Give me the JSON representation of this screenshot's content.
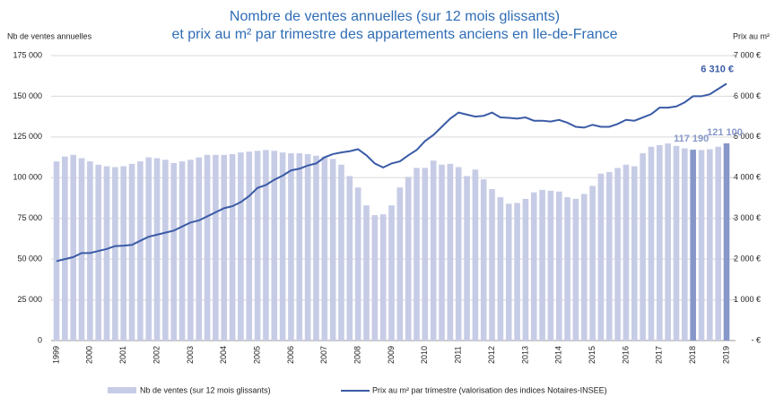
{
  "chart_data": {
    "type": "bar_line",
    "title": [
      "Nombre de ventes annuelles (sur 12 mois glissants)",
      "et prix au m² par trimestre des appartements anciens en Ile-de-France"
    ],
    "y_label": "Nb de ventes annuelles",
    "y2_label": "Prix au m²",
    "categories": [
      "1999",
      null,
      null,
      null,
      "2000",
      null,
      null,
      null,
      "2001",
      null,
      null,
      null,
      "2002",
      null,
      null,
      null,
      "2003",
      null,
      null,
      null,
      "2004",
      null,
      null,
      null,
      "2005",
      null,
      null,
      null,
      "2006",
      null,
      null,
      null,
      "2007",
      null,
      null,
      null,
      "2008",
      null,
      null,
      null,
      "2009",
      null,
      null,
      null,
      "2010",
      null,
      null,
      null,
      "2011",
      null,
      null,
      null,
      "2012",
      null,
      null,
      null,
      "2013",
      null,
      null,
      null,
      "2014",
      null,
      null,
      null,
      "2015",
      null,
      null,
      null,
      "2016",
      null,
      null,
      null,
      "2017",
      null,
      null,
      null,
      "2018",
      null,
      null,
      null,
      "2019"
    ],
    "ylim": [
      0,
      175000
    ],
    "yticks": [
      0,
      {
        "value": 25000,
        "label": "25 000"
      },
      {
        "value": 50000,
        "label": "50 000"
      },
      {
        "value": 75000,
        "label": "75 000"
      },
      {
        "value": 100000,
        "label": "100 000"
      },
      {
        "value": 125000,
        "label": "125 000"
      },
      {
        "value": 150000,
        "label": "150 000"
      },
      {
        "value": 175000,
        "label": "175 000"
      }
    ],
    "y2lim": [
      0,
      7000
    ],
    "y2ticks": [
      {
        "value": 0,
        "label": "- €"
      },
      {
        "value": 1000,
        "label": "1 000 €"
      },
      {
        "value": 2000,
        "label": "2 000 €"
      },
      {
        "value": 3000,
        "label": "3 000 €"
      },
      {
        "value": 4000,
        "label": "4 000 €"
      },
      {
        "value": 5000,
        "label": "5 000 €"
      },
      {
        "value": 6000,
        "label": "6 000 €"
      },
      {
        "value": 7000,
        "label": "7 000 €"
      }
    ],
    "grid": true,
    "series": [
      {
        "name": "Nb de ventes (sur 12 mois glissants)",
        "kind": "bar",
        "color": "#c7cce6",
        "highlight_color": "#8797c9",
        "values": [
          110000,
          113000,
          114000,
          112000,
          110000,
          108000,
          107000,
          106500,
          107000,
          108500,
          110000,
          112500,
          112000,
          111000,
          109000,
          110000,
          111000,
          112500,
          114000,
          114000,
          114000,
          114500,
          115500,
          116000,
          116500,
          117000,
          116500,
          115500,
          115000,
          115000,
          114500,
          113500,
          113000,
          111500,
          108000,
          101000,
          94000,
          83000,
          77000,
          77500,
          83000,
          94000,
          100500,
          106000,
          106000,
          110500,
          108000,
          108500,
          106500,
          101000,
          105000,
          99000,
          93000,
          88000,
          84000,
          84500,
          87000,
          91000,
          92500,
          92000,
          91500,
          88000,
          87000,
          90000,
          95000,
          102500,
          103500,
          106000,
          108000,
          107000,
          115000,
          119000,
          120000,
          121000,
          119500,
          118000,
          117190,
          117000,
          117500,
          119000,
          121100
        ],
        "value_labels": [
          null,
          null,
          null,
          null,
          null,
          null,
          null,
          null,
          null,
          null,
          null,
          null,
          null,
          null,
          null,
          null,
          null,
          null,
          null,
          null,
          null,
          null,
          null,
          null,
          null,
          null,
          null,
          null,
          null,
          null,
          null,
          null,
          null,
          null,
          null,
          null,
          null,
          null,
          null,
          null,
          null,
          null,
          null,
          null,
          null,
          null,
          null,
          null,
          null,
          null,
          null,
          null,
          null,
          null,
          null,
          null,
          null,
          null,
          null,
          null,
          null,
          null,
          null,
          null,
          null,
          null,
          null,
          null,
          null,
          null,
          null,
          null,
          null,
          null,
          null,
          null,
          "117 190",
          null,
          null,
          null,
          "121 100"
        ]
      },
      {
        "name": "Prix au m² par trimestre (valorisation des indices Notaires-INSEE)",
        "kind": "line",
        "axis": "y2",
        "color": "#3a5ba6",
        "values": [
          1950,
          2000,
          2050,
          2150,
          2150,
          2200,
          2250,
          2320,
          2330,
          2350,
          2450,
          2550,
          2600,
          2650,
          2700,
          2800,
          2900,
          2950,
          3050,
          3150,
          3250,
          3300,
          3400,
          3550,
          3750,
          3820,
          3950,
          4050,
          4180,
          4220,
          4300,
          4350,
          4500,
          4580,
          4620,
          4650,
          4700,
          4550,
          4350,
          4250,
          4350,
          4400,
          4550,
          4680,
          4900,
          5050,
          5250,
          5450,
          5600,
          5550,
          5500,
          5520,
          5600,
          5480,
          5470,
          5450,
          5480,
          5400,
          5400,
          5380,
          5420,
          5350,
          5250,
          5230,
          5300,
          5250,
          5250,
          5320,
          5420,
          5400,
          5480,
          5560,
          5720,
          5720,
          5750,
          5850,
          6000,
          6000,
          6050,
          6180,
          6310
        ],
        "value_labels": [
          null,
          null,
          null,
          null,
          null,
          null,
          null,
          null,
          null,
          null,
          null,
          null,
          null,
          null,
          null,
          null,
          null,
          null,
          null,
          null,
          null,
          null,
          null,
          null,
          null,
          null,
          null,
          null,
          null,
          null,
          null,
          null,
          null,
          null,
          null,
          null,
          null,
          null,
          null,
          null,
          null,
          null,
          null,
          null,
          null,
          null,
          null,
          null,
          null,
          null,
          null,
          null,
          null,
          null,
          null,
          null,
          null,
          null,
          null,
          null,
          null,
          null,
          null,
          null,
          null,
          null,
          null,
          null,
          null,
          null,
          null,
          null,
          null,
          null,
          null,
          null,
          null,
          null,
          null,
          null,
          "6 310 €"
        ]
      }
    ]
  }
}
